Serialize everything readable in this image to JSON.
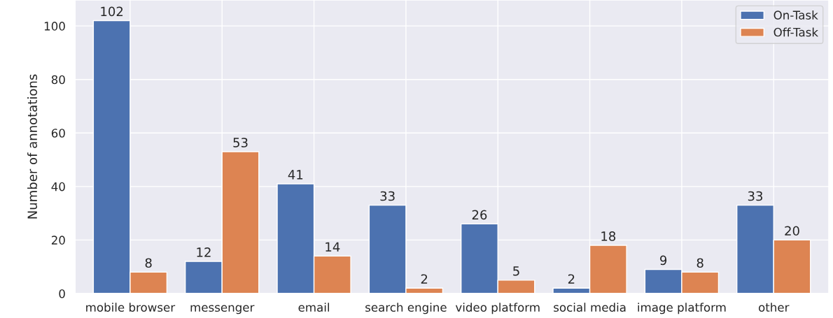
{
  "chart_data": {
    "type": "bar",
    "ylabel": "Number of annotations",
    "categories": [
      "mobile browser",
      "messenger",
      "email",
      "search engine",
      "video platform",
      "social media",
      "image platform",
      "other"
    ],
    "series": [
      {
        "name": "On-Task",
        "color": "#4c72b0",
        "values": [
          102,
          12,
          41,
          33,
          26,
          2,
          9,
          33
        ]
      },
      {
        "name": "Off-Task",
        "color": "#dd8452",
        "values": [
          8,
          53,
          14,
          2,
          5,
          18,
          8,
          20
        ]
      }
    ],
    "ylim": [
      0,
      109.7
    ],
    "yticks": [
      0,
      20,
      40,
      60,
      80,
      100
    ],
    "grid": true,
    "legend": "top right",
    "data_labels": true
  }
}
